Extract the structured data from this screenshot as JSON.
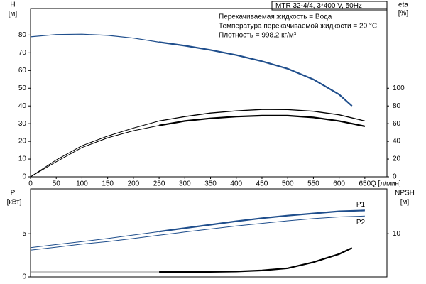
{
  "chart_data": [
    {
      "type": "line",
      "model": "MTR 32-4/4, 3*400 V, 50Hz",
      "notes": [
        "Перекачиваемая жидкость = Вода",
        "Температура перекачиваемой жидкости = 20 °C",
        "Плотность = 998.2 кг/м³"
      ],
      "ylabel": [
        "H",
        "[м]"
      ],
      "y2label": [
        "eta",
        "[%]"
      ],
      "xlabel": "Q [л/мин]",
      "xlim": [
        0,
        693
      ],
      "xticks": [
        0,
        50,
        100,
        150,
        200,
        250,
        300,
        350,
        400,
        450,
        500,
        550,
        600,
        650
      ],
      "ylim": [
        0,
        95
      ],
      "yticks": [
        0,
        10,
        20,
        30,
        40,
        50,
        60,
        70,
        80
      ],
      "y2lim": [
        0,
        190
      ],
      "y2ticks": [
        0,
        20,
        40,
        60,
        80,
        100
      ],
      "series": [
        {
          "color": "#1f4e8c",
          "width": 1.2,
          "x": [
            0,
            50,
            100,
            150,
            200,
            250
          ],
          "values": [
            79,
            80.3,
            80.5,
            79.8,
            78.3,
            76
          ]
        },
        {
          "color": "#1f4e8c",
          "width": 2.2,
          "x": [
            250,
            300,
            350,
            400,
            450,
            500,
            550,
            600,
            625
          ],
          "values": [
            76,
            74,
            71.6,
            68.7,
            65.2,
            61,
            55,
            46.5,
            40
          ]
        },
        {
          "color": "#000000",
          "width": 1,
          "axis": "y2",
          "x": [
            0,
            50,
            100,
            150,
            200,
            250
          ],
          "values": [
            0,
            19,
            35,
            46,
            55,
            63
          ]
        },
        {
          "color": "#000000",
          "width": 1.3,
          "axis": "y2",
          "x": [
            250,
            300,
            350,
            400,
            450,
            500,
            550,
            600,
            650
          ],
          "values": [
            63,
            68,
            72,
            74.5,
            76,
            75.8,
            74,
            70,
            63
          ]
        },
        {
          "color": "#000000",
          "width": 1,
          "axis": "y2",
          "x": [
            0,
            50,
            100,
            150,
            200,
            250
          ],
          "values": [
            0,
            17,
            33,
            44,
            52,
            58
          ]
        },
        {
          "color": "#000000",
          "width": 2.2,
          "axis": "y2",
          "x": [
            250,
            300,
            350,
            400,
            450,
            500,
            550,
            600,
            650
          ],
          "values": [
            58,
            63,
            66,
            68,
            69,
            69,
            67,
            63,
            57
          ]
        }
      ]
    },
    {
      "type": "line",
      "ylabel": [
        "P",
        "[кВт]"
      ],
      "y2label": [
        "NPSH",
        "[м]"
      ],
      "xlim": [
        0,
        693
      ],
      "ylim": [
        0,
        10.2
      ],
      "yticks": [
        0,
        5
      ],
      "y2lim": [
        0,
        20.4
      ],
      "y2ticks": [
        10
      ],
      "series": [
        {
          "color": "#1f4e8c",
          "width": 1,
          "x": [
            0,
            50,
            100,
            150,
            200,
            250
          ],
          "values": [
            3.4,
            3.75,
            4.1,
            4.45,
            4.85,
            5.25
          ]
        },
        {
          "name": "P1",
          "color": "#1f4e8c",
          "width": 2.2,
          "x": [
            250,
            300,
            350,
            400,
            450,
            500,
            550,
            600,
            650
          ],
          "values": [
            5.25,
            5.65,
            6.05,
            6.45,
            6.8,
            7.1,
            7.35,
            7.6,
            7.7
          ]
        },
        {
          "name": "P2",
          "color": "#1f4e8c",
          "width": 1,
          "x": [
            0,
            50,
            100,
            150,
            200,
            250,
            300,
            350,
            400,
            450,
            500,
            550,
            600,
            650
          ],
          "values": [
            3.1,
            3.45,
            3.8,
            4.1,
            4.45,
            4.84,
            5.2,
            5.55,
            5.9,
            6.2,
            6.5,
            6.75,
            6.95,
            7.05
          ]
        },
        {
          "color": "#888888",
          "width": 1,
          "axis": "y2",
          "x": [
            0,
            250
          ],
          "values": [
            1.15,
            1.15
          ]
        },
        {
          "color": "#000000",
          "width": 2.2,
          "axis": "y2",
          "x": [
            250,
            300,
            350,
            400,
            450,
            500,
            550,
            600,
            625
          ],
          "values": [
            1.15,
            1.15,
            1.17,
            1.25,
            1.5,
            2.0,
            3.4,
            5.3,
            6.7
          ]
        }
      ]
    }
  ]
}
